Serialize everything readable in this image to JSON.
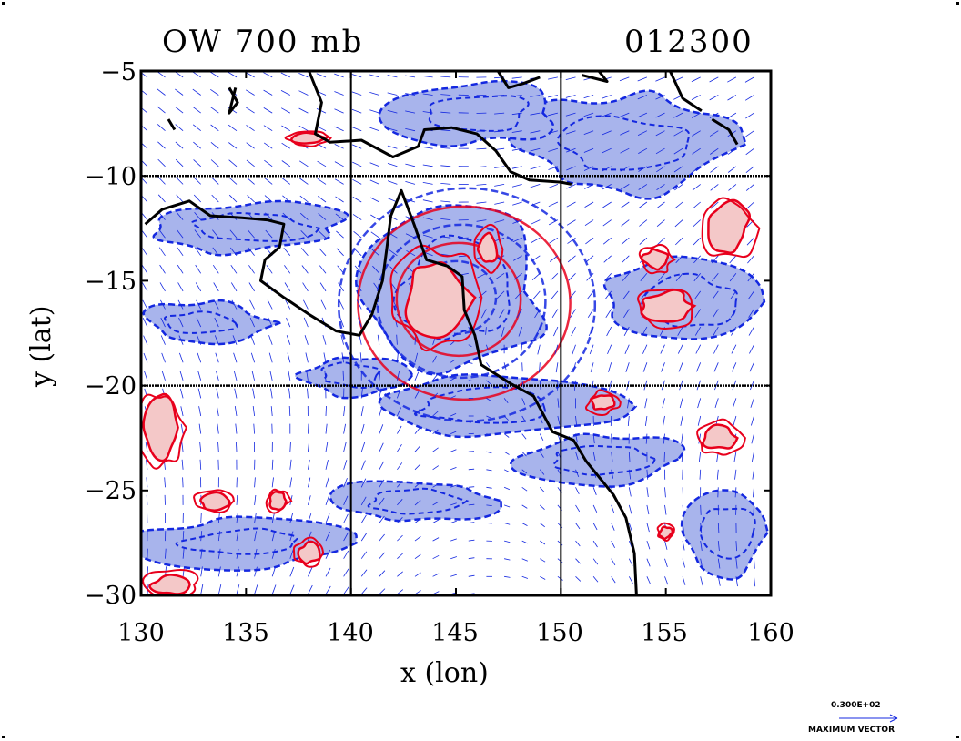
{
  "title_left": "OW 700 mb",
  "title_right": "012300",
  "xlabel": "x (lon)",
  "ylabel": "y (lat)",
  "x_ticks": [
    "130",
    "135",
    "140",
    "145",
    "150",
    "155",
    "160"
  ],
  "y_ticks": [
    "−5",
    "−10",
    "−15",
    "−20",
    "−25",
    "−30"
  ],
  "legend": {
    "value": "0.300E+02",
    "label": "MAXIMUM VECTOR"
  },
  "colors": {
    "positive_line": "#e8001c",
    "positive_fill": "#f4c8c8",
    "negative_line": "#1428e0",
    "negative_fill": "#a8b4ec",
    "coast": "#000000"
  },
  "chart_data": {
    "type": "contour",
    "xlim": [
      130,
      160
    ],
    "ylim": [
      -30,
      -5
    ],
    "gridlines_x": [
      140,
      150
    ],
    "gridlines_y": [
      -10,
      -20
    ],
    "positive_regions": [
      {
        "lon": 144.0,
        "lat": -15.8,
        "rx": 1.6,
        "ry": 1.8
      },
      {
        "lon": 155.0,
        "lat": -16.2,
        "rx": 1.2,
        "ry": 0.7
      },
      {
        "lon": 158.0,
        "lat": -12.5,
        "rx": 1.0,
        "ry": 1.2
      },
      {
        "lon": 154.5,
        "lat": -14.0,
        "rx": 0.6,
        "ry": 0.5
      },
      {
        "lon": 131.0,
        "lat": -22.0,
        "rx": 0.8,
        "ry": 1.4
      },
      {
        "lon": 133.5,
        "lat": -25.5,
        "rx": 0.7,
        "ry": 0.4
      },
      {
        "lon": 138.0,
        "lat": -8.2,
        "rx": 0.8,
        "ry": 0.3
      },
      {
        "lon": 136.5,
        "lat": -25.5,
        "rx": 0.4,
        "ry": 0.4
      },
      {
        "lon": 138.0,
        "lat": -28.0,
        "rx": 0.5,
        "ry": 0.5
      },
      {
        "lon": 131.5,
        "lat": -29.5,
        "rx": 1.0,
        "ry": 0.5
      },
      {
        "lon": 152.0,
        "lat": -20.8,
        "rx": 0.6,
        "ry": 0.4
      },
      {
        "lon": 157.5,
        "lat": -22.5,
        "rx": 0.8,
        "ry": 0.6
      },
      {
        "lon": 155.0,
        "lat": -27.0,
        "rx": 0.3,
        "ry": 0.3
      },
      {
        "lon": 146.5,
        "lat": -13.5,
        "rx": 0.5,
        "ry": 0.8
      }
    ],
    "negative_regions": [
      {
        "lon": 145.0,
        "lat": -15.5,
        "rx": 4.5,
        "ry": 4.0
      },
      {
        "lon": 146.5,
        "lat": -21.0,
        "rx": 6.0,
        "ry": 1.4
      },
      {
        "lon": 156.0,
        "lat": -16.0,
        "rx": 4.0,
        "ry": 2.0
      },
      {
        "lon": 135.0,
        "lat": -12.5,
        "rx": 5.0,
        "ry": 1.2
      },
      {
        "lon": 153.0,
        "lat": -8.5,
        "rx": 5.0,
        "ry": 2.5
      },
      {
        "lon": 146.0,
        "lat": -7.0,
        "rx": 4.0,
        "ry": 1.5
      },
      {
        "lon": 143.0,
        "lat": -25.5,
        "rx": 4.0,
        "ry": 1.0
      },
      {
        "lon": 135.0,
        "lat": -27.5,
        "rx": 5.0,
        "ry": 1.2
      },
      {
        "lon": 133.0,
        "lat": -17.0,
        "rx": 3.0,
        "ry": 1.0
      },
      {
        "lon": 158.0,
        "lat": -27.0,
        "rx": 2.0,
        "ry": 2.0
      },
      {
        "lon": 152.0,
        "lat": -23.5,
        "rx": 4.0,
        "ry": 1.2
      },
      {
        "lon": 140.0,
        "lat": -19.5,
        "rx": 2.5,
        "ry": 1.0
      }
    ],
    "coastline": [
      [
        [
          130.2,
          -12.3
        ],
        [
          131.0,
          -11.6
        ],
        [
          132.3,
          -11.2
        ],
        [
          133.3,
          -11.9
        ],
        [
          134.8,
          -12.0
        ],
        [
          136.0,
          -12.1
        ],
        [
          136.8,
          -12.3
        ],
        [
          136.6,
          -13.4
        ],
        [
          135.9,
          -14.0
        ],
        [
          135.7,
          -15.0
        ],
        [
          136.8,
          -15.8
        ],
        [
          138.0,
          -16.6
        ],
        [
          139.3,
          -17.4
        ],
        [
          140.4,
          -17.6
        ],
        [
          141.0,
          -16.6
        ],
        [
          141.5,
          -15.0
        ],
        [
          141.7,
          -13.5
        ],
        [
          141.9,
          -11.9
        ],
        [
          142.4,
          -10.7
        ],
        [
          143.0,
          -12.3
        ],
        [
          143.6,
          -14.0
        ],
        [
          144.6,
          -14.3
        ],
        [
          145.3,
          -14.8
        ],
        [
          145.4,
          -16.4
        ],
        [
          145.9,
          -17.6
        ],
        [
          146.2,
          -19.0
        ],
        [
          147.6,
          -19.9
        ],
        [
          148.7,
          -20.5
        ],
        [
          149.6,
          -22.2
        ],
        [
          150.6,
          -22.6
        ],
        [
          151.2,
          -23.6
        ],
        [
          152.5,
          -25.2
        ],
        [
          153.1,
          -26.3
        ],
        [
          153.5,
          -28.0
        ],
        [
          153.6,
          -30.0
        ]
      ],
      [
        [
          138.0,
          -5.0
        ],
        [
          138.6,
          -6.5
        ],
        [
          138.3,
          -8.0
        ],
        [
          139.0,
          -8.4
        ],
        [
          140.5,
          -8.3
        ],
        [
          142.0,
          -9.1
        ],
        [
          143.2,
          -8.6
        ],
        [
          143.5,
          -7.8
        ],
        [
          144.8,
          -7.7
        ],
        [
          146.0,
          -8.0
        ],
        [
          146.9,
          -8.8
        ],
        [
          147.6,
          -9.8
        ],
        [
          148.5,
          -10.2
        ],
        [
          150.0,
          -10.3
        ],
        [
          150.5,
          -10.4
        ]
      ],
      [
        [
          147.0,
          -5.0
        ],
        [
          147.5,
          -5.8
        ],
        [
          148.2,
          -5.6
        ],
        [
          149.0,
          -5.3
        ]
      ],
      [
        [
          151.0,
          -5.2
        ],
        [
          152.2,
          -5.5
        ],
        [
          151.8,
          -5.0
        ]
      ],
      [
        [
          155.2,
          -5.0
        ],
        [
          155.8,
          -6.3
        ],
        [
          156.7,
          -6.9
        ]
      ],
      [
        [
          157.2,
          -7.3
        ],
        [
          158.0,
          -7.8
        ],
        [
          158.4,
          -8.5
        ]
      ],
      [
        [
          134.2,
          -5.8
        ],
        [
          134.6,
          -6.5
        ],
        [
          134.2,
          -7.0
        ],
        [
          134.5,
          -5.8
        ]
      ],
      [
        [
          131.3,
          -7.3
        ],
        [
          131.6,
          -7.8
        ]
      ]
    ]
  }
}
